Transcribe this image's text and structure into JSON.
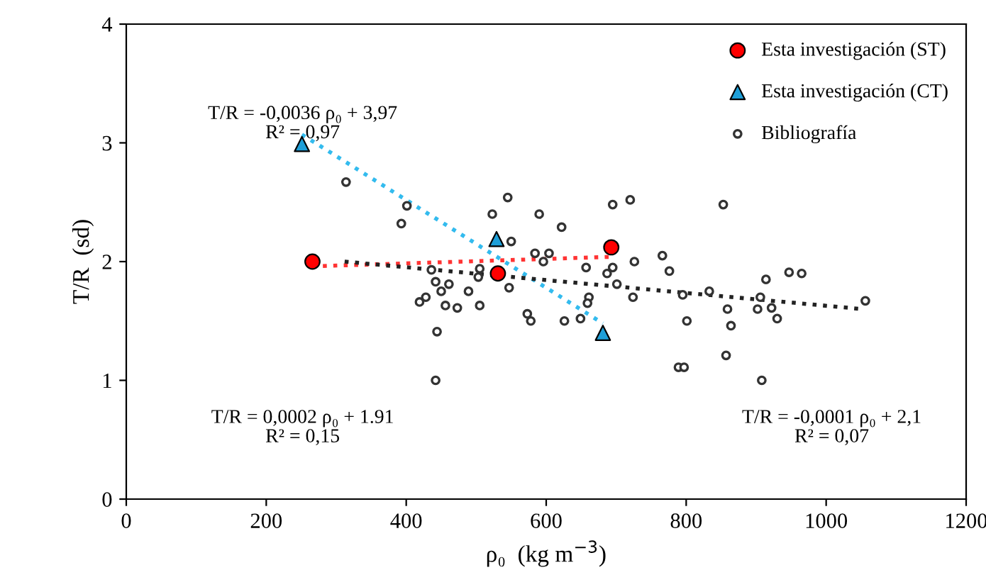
{
  "chart_data": {
    "type": "scatter",
    "xlabel": "ρ₀  (kg m$^{−3}$)",
    "ylabel": "T/R  (sd)",
    "xlim": [
      0,
      1200
    ],
    "ylim": [
      0,
      4
    ],
    "xticks": [
      0,
      200,
      400,
      600,
      800,
      1000,
      1200
    ],
    "yticks": [
      0,
      1,
      2,
      3,
      4
    ],
    "grid": false,
    "legend": "top right",
    "series": [
      {
        "name": "Esta investigación (ST)",
        "color": "#ff0000",
        "marker": "circle",
        "x": [
          266,
          531,
          693
        ],
        "values": [
          2.0,
          1.9,
          2.12
        ]
      },
      {
        "name": "Esta investigación (CT)",
        "color": "#1f9fd8",
        "marker": "triangle",
        "x": [
          251,
          529,
          681
        ],
        "values": [
          2.99,
          2.19,
          1.4
        ]
      },
      {
        "name": "Bibliografía",
        "color": "#ffffff",
        "marker": "circle",
        "x": [
          314,
          401,
          393,
          545,
          523,
          590,
          622,
          550,
          584,
          604,
          596,
          695,
          720,
          726,
          657,
          695,
          687,
          701,
          724,
          661,
          659,
          649,
          626,
          573,
          578,
          436,
          505,
          503,
          442,
          461,
          450,
          489,
          547,
          428,
          419,
          456,
          473,
          505,
          444,
          442,
          853,
          766,
          776,
          914,
          947,
          965,
          795,
          833,
          906,
          859,
          902,
          922,
          930,
          801,
          864,
          1056,
          857,
          789,
          797,
          908
        ],
        "values": [
          2.67,
          2.47,
          2.32,
          2.54,
          2.4,
          2.4,
          2.29,
          2.17,
          2.07,
          2.07,
          2.0,
          2.48,
          2.52,
          2.0,
          1.95,
          1.95,
          1.9,
          1.81,
          1.7,
          1.7,
          1.65,
          1.52,
          1.5,
          1.56,
          1.5,
          1.93,
          1.94,
          1.87,
          1.83,
          1.81,
          1.75,
          1.75,
          1.78,
          1.7,
          1.66,
          1.63,
          1.61,
          1.63,
          1.41,
          1.0,
          2.48,
          2.05,
          1.92,
          1.85,
          1.91,
          1.9,
          1.72,
          1.75,
          1.7,
          1.6,
          1.6,
          1.61,
          1.52,
          1.5,
          1.46,
          1.67,
          1.21,
          1.11,
          1.11,
          1.0
        ]
      },
      {
        "type": "line",
        "color": "#33bbee",
        "line_style": "dotted",
        "marker": "none",
        "x": [
          251,
          681
        ],
        "values": [
          3.07,
          1.48
        ]
      },
      {
        "type": "line",
        "color": "#ff3333",
        "line_style": "dotted",
        "marker": "none",
        "x": [
          266,
          693
        ],
        "values": [
          1.96,
          2.04
        ]
      },
      {
        "type": "line",
        "color": "#222222",
        "line_style": "dotted",
        "marker": "none",
        "x": [
          312,
          1052
        ],
        "values": [
          2.0,
          1.6
        ]
      }
    ],
    "annotations": [
      "T/R = -0,0036 ρ₀ + 3,97\nR² = 0,97",
      "T/R = 0,0002 ρ₀ + 1.91\nR² = 0,15",
      "T/R = -0,0001 ρ₀ + 2,1\nR² = 0,07"
    ]
  }
}
